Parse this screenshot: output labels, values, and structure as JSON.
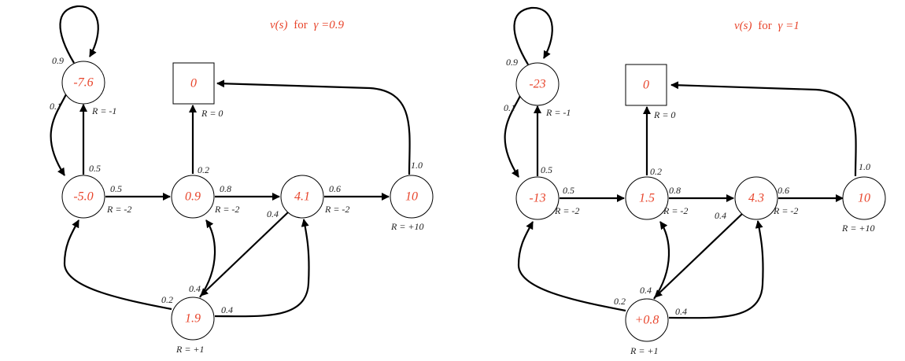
{
  "colors": {
    "value": "#e8452c",
    "ink": "#000000",
    "label": "#222222"
  },
  "panels": [
    {
      "title": {
        "v": "v(s)",
        "for": "for",
        "gamma": "γ =0.9"
      },
      "values": {
        "top": "-7.6",
        "terminal": "0",
        "a": "-5.0",
        "b": "0.9",
        "c": "4.1",
        "d": "10",
        "e": "1.9"
      },
      "rewards": {
        "top": "R = -1",
        "terminal": "R = 0",
        "a": "R = -2",
        "b": "R = -2",
        "c": "R = -2",
        "d": "R = +10",
        "e": "R = +1"
      },
      "probs": {
        "self_loop": "0.9",
        "top_to_a": "0.1",
        "a_to_top": "0.5",
        "a_to_b": "0.5",
        "b_to_term": "0.2",
        "b_to_c": "0.8",
        "c_to_d": "0.6",
        "c_to_e": "0.4",
        "d_to_term": "1.0",
        "e_to_b": "0.4",
        "e_to_a": "0.2",
        "e_to_c": "0.4"
      }
    },
    {
      "title": {
        "v": "v(s)",
        "for": "for",
        "gamma": "γ =1"
      },
      "values": {
        "top": "-23",
        "terminal": "0",
        "a": "-13",
        "b": "1.5",
        "c": "4.3",
        "d": "10",
        "e": "+0.8"
      },
      "rewards": {
        "top": "R = -1",
        "terminal": "R = 0",
        "a": "R = -2",
        "b": "R = -2",
        "c": "R = -2",
        "d": "R = +10",
        "e": "R = +1"
      },
      "probs": {
        "self_loop": "0.9",
        "top_to_a": "0.1",
        "a_to_top": "0.5",
        "a_to_b": "0.5",
        "b_to_term": "0.2",
        "b_to_c": "0.8",
        "c_to_d": "0.6",
        "c_to_e": "0.4",
        "d_to_term": "1.0",
        "e_to_b": "0.4",
        "e_to_a": "0.2",
        "e_to_c": "0.4"
      }
    }
  ]
}
